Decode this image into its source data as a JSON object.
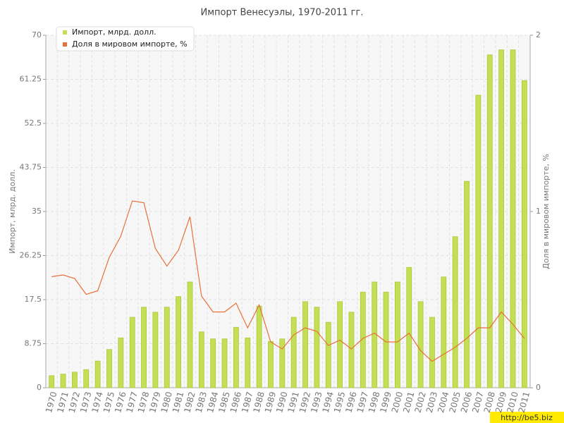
{
  "chart_data": {
    "type": "bar-line",
    "title": "Импорт Венесуэлы, 1970-2011 гг.",
    "y_label": "Импорт, млрд. долл.",
    "y2_label": "Доля в мировом импорте, %",
    "watermark": "http://be5.biz",
    "categories": [
      "1970",
      "1971",
      "1972",
      "1973",
      "1974",
      "1975",
      "1976",
      "1977",
      "1978",
      "1979",
      "1980",
      "1981",
      "1982",
      "1983",
      "1984",
      "1985",
      "1986",
      "1987",
      "1988",
      "1989",
      "1990",
      "1991",
      "1992",
      "1993",
      "1994",
      "1995",
      "1996",
      "1997",
      "1998",
      "1999",
      "2000",
      "2001",
      "2002",
      "2003",
      "2004",
      "2005",
      "2006",
      "2007",
      "2008",
      "2009",
      "2010",
      "2011"
    ],
    "series": [
      {
        "name": "Импорт, млрд. долл.",
        "type": "bar",
        "color": "#c5df55",
        "values": [
          2.4,
          2.7,
          3.1,
          3.6,
          5.3,
          7.6,
          9.9,
          14.0,
          16.0,
          15.0,
          16.0,
          18.1,
          21.0,
          11.1,
          9.7,
          9.7,
          12.0,
          9.9,
          16.2,
          9.2,
          9.7,
          14.0,
          17.1,
          16.0,
          13.0,
          17.1,
          15.0,
          19.0,
          21.0,
          19.0,
          21.0,
          23.9,
          17.1,
          14.0,
          22.0,
          30.0,
          41.0,
          58.1,
          66.1,
          67.1,
          67.1,
          61.0
        ]
      },
      {
        "name": "Доля в мировом импорте, %",
        "type": "line",
        "axis": "y2",
        "color": "#e8703a",
        "values": [
          0.63,
          0.64,
          0.62,
          0.53,
          0.55,
          0.74,
          0.86,
          1.06,
          1.05,
          0.79,
          0.69,
          0.78,
          0.97,
          0.52,
          0.43,
          0.43,
          0.48,
          0.34,
          0.47,
          0.26,
          0.22,
          0.3,
          0.34,
          0.32,
          0.24,
          0.27,
          0.22,
          0.28,
          0.31,
          0.26,
          0.26,
          0.31,
          0.21,
          0.15,
          0.19,
          0.23,
          0.28,
          0.34,
          0.34,
          0.43,
          0.36,
          0.28
        ]
      }
    ],
    "ylim": [
      0,
      70
    ],
    "yticks": [
      0,
      8.75,
      17.5,
      26.25,
      35,
      43.75,
      52.5,
      61.25,
      70
    ],
    "y2lim": [
      0,
      2
    ],
    "y2ticks": [
      0,
      1,
      2
    ],
    "grid": true,
    "legend": "top-left"
  }
}
